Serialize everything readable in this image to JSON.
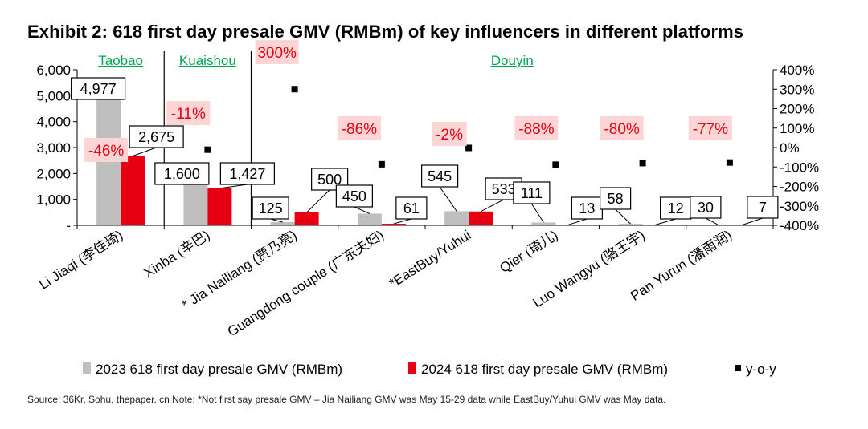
{
  "title": "Exhibit 2: 618 first day presale GMV (RMBm) of key influencers in different platforms",
  "source_note": "Source: 36Kr, Sohu, thepaper. cn  Note: *Not first say presale GMV – Jia Nailiang GMV was May 15-29 data while EastBuy/Yuhui GMV was May data.",
  "colors": {
    "series_2023": "#bfbfbf",
    "series_2024": "#e60012",
    "yoy_marker": "#000000",
    "platform_label": "#00a651",
    "yoy_label_bg": "#fdd5d5",
    "yoy_label_text": "#e60012"
  },
  "chart_data": {
    "type": "bar",
    "title": "618 first day presale GMV (RMBm) of key influencers in different platforms",
    "categories": [
      "Li Jiaqi (李佳琦)",
      "Xinba (辛巴)",
      "* Jia Nailiang (贾乃亮)",
      "Guangdong couple (广东夫妇)",
      "*EastBuy/Yuhui",
      "Qier (琦儿)",
      "Luo Wangyu (骆王宇)",
      "Pan Yurun (潘雨润)"
    ],
    "series": [
      {
        "name": "2023 618 first day presale GMV (RMBm)",
        "values": [
          4977,
          1600,
          125,
          450,
          545,
          111,
          58,
          30
        ],
        "labels": [
          "4,977",
          "1,600",
          "125",
          "450",
          "545",
          "111",
          "58",
          "30"
        ]
      },
      {
        "name": "2024 618 first day presale GMV (RMBm)",
        "values": [
          2675,
          1427,
          500,
          61,
          533,
          13,
          12,
          7
        ],
        "labels": [
          "2,675",
          "1,427",
          "500",
          "61",
          "533",
          "13",
          "12",
          "7"
        ]
      },
      {
        "name": "y-o-y",
        "axis": "right",
        "values": [
          -46,
          -11,
          300,
          -86,
          -2,
          -88,
          -80,
          -77
        ],
        "labels": [
          "-46%",
          "-11%",
          "300%",
          "-86%",
          "-2%",
          "-88%",
          "-80%",
          "-77%"
        ]
      }
    ],
    "platforms": [
      {
        "name": "Taobao",
        "categories": [
          "Li Jiaqi (李佳琦)"
        ]
      },
      {
        "name": "Kuaishou",
        "categories": [
          "Xinba (辛巴)"
        ]
      },
      {
        "name": "Douyin",
        "categories": [
          "* Jia Nailiang (贾乃亮)",
          "Guangdong couple (广东夫妇)",
          "*EastBuy/Yuhui",
          "Qier (琦儿)",
          "Luo Wangyu (骆王宇)",
          "Pan Yurun (潘雨润)"
        ]
      }
    ],
    "ylim": [
      0,
      6000
    ],
    "yticks": [
      0,
      1000,
      2000,
      3000,
      4000,
      5000,
      6000
    ],
    "ytick_labels": [
      "-",
      "1,000",
      "2,000",
      "3,000",
      "4,000",
      "5,000",
      "6,000"
    ],
    "y2lim": [
      -400,
      400
    ],
    "y2ticks": [
      -400,
      -300,
      -200,
      -100,
      0,
      100,
      200,
      300,
      400
    ],
    "y2tick_labels": [
      "-400%",
      "-300%",
      "-200%",
      "-100%",
      "0%",
      "100%",
      "200%",
      "300%",
      "400%"
    ],
    "legend_position": "bottom",
    "grid": false
  }
}
